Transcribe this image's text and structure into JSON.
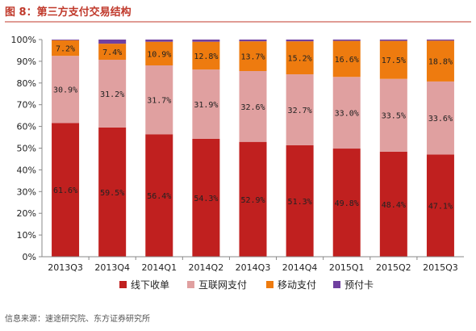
{
  "chart_data": {
    "type": "bar",
    "stacked": true,
    "title": "图 8：第三方支付交易结构",
    "categories": [
      "2013Q3",
      "2013Q4",
      "2014Q1",
      "2014Q2",
      "2014Q3",
      "2014Q4",
      "2015Q1",
      "2015Q2",
      "2015Q3"
    ],
    "ylim": [
      0,
      100
    ],
    "y_ticks": [
      "0%",
      "10%",
      "20%",
      "30%",
      "40%",
      "50%",
      "60%",
      "70%",
      "80%",
      "90%",
      "100%"
    ],
    "series": [
      {
        "name": "线下收单",
        "color": "#c0201f",
        "values": [
          61.6,
          59.5,
          56.4,
          54.3,
          52.9,
          51.3,
          49.8,
          48.4,
          47.1
        ],
        "labels": [
          "61.6%",
          "59.5%",
          "56.4%",
          "54.3%",
          "52.9%",
          "51.3%",
          "49.8%",
          "48.4%",
          "47.1%"
        ]
      },
      {
        "name": "互联网支付",
        "color": "#e0a0a0",
        "values": [
          30.9,
          31.2,
          31.7,
          31.9,
          32.6,
          32.7,
          33.0,
          33.5,
          33.6
        ],
        "labels": [
          "30.9%",
          "31.2%",
          "31.7%",
          "31.9%",
          "32.6%",
          "32.7%",
          "33.0%",
          "33.5%",
          "33.6%"
        ]
      },
      {
        "name": "移动支付",
        "color": "#ee7b0f",
        "values": [
          7.2,
          7.4,
          10.9,
          12.8,
          13.7,
          15.2,
          16.6,
          17.5,
          18.8
        ],
        "labels": [
          "7.2%",
          "7.4%",
          "10.9%",
          "12.8%",
          "13.7%",
          "15.2%",
          "16.6%",
          "17.5%",
          "18.8%"
        ]
      },
      {
        "name": "预付卡",
        "color": "#7040a0",
        "values": [
          0.3,
          1.9,
          1.0,
          1.0,
          0.8,
          0.8,
          0.6,
          0.6,
          0.5
        ],
        "labels": [
          "",
          "",
          "",
          "",
          "",
          "",
          "",
          "",
          ""
        ]
      }
    ],
    "legend": "bottom",
    "grid": false
  },
  "source": "信息来源：速途研究院、东方证券研究所"
}
